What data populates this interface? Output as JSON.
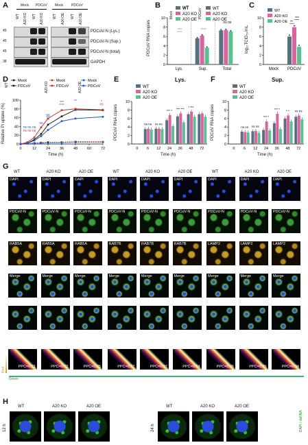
{
  "panels": {
    "A": "A",
    "B": "B",
    "C": "C",
    "D": "D",
    "E": "E",
    "F": "F",
    "G": "G",
    "H": "H"
  },
  "colors": {
    "wt": "#5a7080",
    "ko": "#d9659e",
    "oe": "#5bbf8f",
    "mock": "#1a1a1a",
    "pdcov": "#c0392b",
    "oe_d": "#2455c9"
  },
  "panelA": {
    "group_mock": "Mock",
    "group_pdcov": "PDCoV",
    "group_mock2": "Mock",
    "group_pdcov2": "PDCoV",
    "lanes_left": [
      "WT",
      "A20 KO",
      "WT",
      "A20 KO"
    ],
    "lanes_right": [
      "WT",
      "A20 OE",
      "WT",
      "A20 OE"
    ],
    "rows": [
      {
        "mw": "45",
        "label": "PDCoV-N (Lys.)"
      },
      {
        "mw": "45",
        "label": "PDCoV-N (Sup.)"
      },
      {
        "mw": "45",
        "label": "PDCoV-N (total)"
      },
      {
        "mw": "38",
        "label": "GAPDH"
      }
    ]
  },
  "panelB": {
    "ylabel": "PDCoV RNA copies",
    "legend": [
      "WT",
      "A20 KO",
      "A20 OE"
    ],
    "legend_mock": "Mock",
    "legend_pdcov": "PDCoV",
    "yticks": [
      "0",
      "2",
      "4",
      "6",
      "8",
      "10"
    ],
    "categories": [
      "Lys.",
      "Sup.",
      "Total"
    ],
    "sig": [
      "***",
      "****",
      "****",
      "ns ns"
    ]
  },
  "panelC": {
    "ylabel": "log₁₀TCID₅₀/mL",
    "legend": [
      "WT",
      "A20 KO",
      "A20 OE"
    ],
    "yticks": [
      "0",
      "2",
      "4",
      "6",
      "8",
      "10"
    ],
    "categories": [
      "Mock",
      "PDCoV"
    ],
    "sig": [
      "**",
      "***"
    ]
  },
  "panelD": {
    "ylabel": "Relative PI uptake (%)",
    "xlabel": "Time (h)",
    "legend_wt": "WT",
    "legend_ko": "A20 KO",
    "legend_oe": "A20 OE",
    "legend_items": [
      "Mock",
      "PDCoV",
      "Mock",
      "PDCoV",
      "Mock",
      "PDCoV"
    ],
    "yticks": [
      "0",
      "20",
      "40",
      "60",
      "80",
      "100"
    ],
    "xticks": [
      "0",
      "12",
      "24",
      "36",
      "48",
      "60",
      "72"
    ],
    "sig": [
      "***",
      "**",
      "****",
      "***",
      "**",
      "*",
      "ns",
      "ns",
      "ns ns ns",
      "ns ns ns",
      "ns"
    ]
  },
  "panelE": {
    "title": "Lys.",
    "ylabel": "PDCoV RNA copies",
    "xlabel": "Time (h)",
    "legend": [
      "WT",
      "A20 KO",
      "A20 OE"
    ],
    "yticks": [
      "0",
      "2",
      "4",
      "6",
      "8",
      "10"
    ],
    "xticks": [
      "0",
      "6",
      "12",
      "24",
      "36",
      "48",
      "72"
    ],
    "sig": [
      "ns ns",
      "ns ns",
      "*** *",
      "*** ***",
      "* ***"
    ]
  },
  "panelF": {
    "title": "Sup.",
    "ylabel": "PDCoV RNA copies",
    "xlabel": "Time (h)",
    "legend": [
      "WT",
      "A20 KO",
      "A20 OE"
    ],
    "yticks": [
      "0",
      "2",
      "4",
      "6",
      "8",
      "10"
    ],
    "xticks": [
      "0",
      "6",
      "12",
      "24",
      "36",
      "48",
      "72"
    ],
    "sig": [
      "ns ns",
      "ns ns",
      "*** *",
      "*** *",
      "* *",
      "ns ns"
    ]
  },
  "panelG": {
    "col_headers": [
      "WT",
      "A20 KO",
      "A20 OE",
      "WT",
      "A20 KO",
      "A20 OE",
      "WT",
      "A20 KO",
      "A20 OE"
    ],
    "row_dapi": "DAPI",
    "row_n": "PDCoV-N",
    "markers": [
      "RAB5A",
      "RAB7B",
      "LAMP2"
    ],
    "merge": "Merge",
    "axis_red": "Red",
    "axis_green": "Green",
    "ppc": [
      "PPC=0.91",
      "PPC=0.92",
      "PPC=0.95",
      "PPC=0.97",
      "PPC=0.97",
      "PPC=0.94",
      "PPC=0.96",
      "PPC=0.95",
      "PPC=0.94"
    ]
  },
  "panelH": {
    "headers_left": [
      "WT",
      "A20 KO",
      "A20 OE"
    ],
    "headers_right": [
      "WT",
      "A20 KO",
      "A20 OE"
    ],
    "time_left": "12 h",
    "time_right": "24 h",
    "side_label": "DAPI / dsRNA"
  },
  "chart_data": [
    {
      "type": "bar",
      "panel": "B",
      "ylabel": "PDCoV RNA copies",
      "categories": [
        "Lys.",
        "Sup.",
        "Total"
      ],
      "series": [
        {
          "name": "WT",
          "values": [
            0,
            5.6,
            7.3
          ]
        },
        {
          "name": "A20 KO",
          "values": [
            0,
            6.2,
            7.4
          ]
        },
        {
          "name": "A20 OE",
          "values": [
            0,
            3.6,
            7.1
          ]
        }
      ],
      "ylim": [
        0,
        10
      ]
    },
    {
      "type": "bar",
      "panel": "C",
      "ylabel": "log₁₀TCID₅₀/mL",
      "categories": [
        "Mock",
        "PDCoV"
      ],
      "series": [
        {
          "name": "WT",
          "values": [
            0,
            6.0
          ]
        },
        {
          "name": "A20 KO",
          "values": [
            0,
            8.0
          ]
        },
        {
          "name": "A20 OE",
          "values": [
            0,
            3.8
          ]
        }
      ],
      "ylim": [
        0,
        10
      ]
    },
    {
      "type": "line",
      "panel": "D",
      "ylabel": "Relative PI uptake (%)",
      "xlabel": "Time (h)",
      "x": [
        0,
        6,
        12,
        18,
        24,
        36,
        48,
        72
      ],
      "series": [
        {
          "name": "Mock",
          "values": [
            0,
            1,
            2,
            3,
            4,
            4,
            5,
            5
          ]
        },
        {
          "name": "PDCoV",
          "values": [
            0,
            2,
            10,
            23,
            44,
            63,
            78,
            77
          ]
        },
        {
          "name": "Mock",
          "values": [
            0,
            1,
            2,
            3,
            3,
            4,
            4,
            5
          ]
        },
        {
          "name": "PDCoV",
          "values": [
            0,
            4,
            15,
            38,
            58,
            77,
            80,
            78
          ]
        },
        {
          "name": "Mock",
          "values": [
            0,
            1,
            2,
            2,
            3,
            3,
            4,
            4
          ]
        },
        {
          "name": "PDCoV",
          "values": [
            0,
            2,
            8,
            18,
            32,
            52,
            58,
            62
          ]
        }
      ],
      "ylim": [
        0,
        100
      ]
    },
    {
      "type": "bar",
      "panel": "E",
      "title": "Lys.",
      "ylabel": "PDCoV RNA copies",
      "xlabel": "Time (h)",
      "categories": [
        "0",
        "6",
        "12",
        "24",
        "36",
        "48",
        "72"
      ],
      "series": [
        {
          "name": "WT",
          "values": [
            0,
            3.5,
            3.6,
            5.6,
            6.5,
            7.0,
            7.0
          ]
        },
        {
          "name": "A20 KO",
          "values": [
            0,
            3.6,
            3.6,
            6.8,
            7.2,
            7.6,
            7.2
          ]
        },
        {
          "name": "A20 OE",
          "values": [
            0,
            3.4,
            3.5,
            4.2,
            5.1,
            6.4,
            6.4
          ]
        }
      ],
      "ylim": [
        0,
        10
      ]
    },
    {
      "type": "bar",
      "panel": "F",
      "title": "Sup.",
      "ylabel": "PDCoV RNA copies",
      "xlabel": "Time (h)",
      "categories": [
        "0",
        "6",
        "12",
        "24",
        "36",
        "48",
        "72"
      ],
      "series": [
        {
          "name": "WT",
          "values": [
            0,
            2.9,
            3.0,
            3.3,
            4.9,
            6.0,
            6.4
          ]
        },
        {
          "name": "A20 KO",
          "values": [
            0,
            2.8,
            3.1,
            5.3,
            7.1,
            6.7,
            6.7
          ]
        },
        {
          "name": "A20 OE",
          "values": [
            0,
            2.7,
            2.6,
            3.2,
            3.5,
            5.3,
            5.8
          ]
        }
      ],
      "ylim": [
        0,
        10
      ]
    }
  ]
}
